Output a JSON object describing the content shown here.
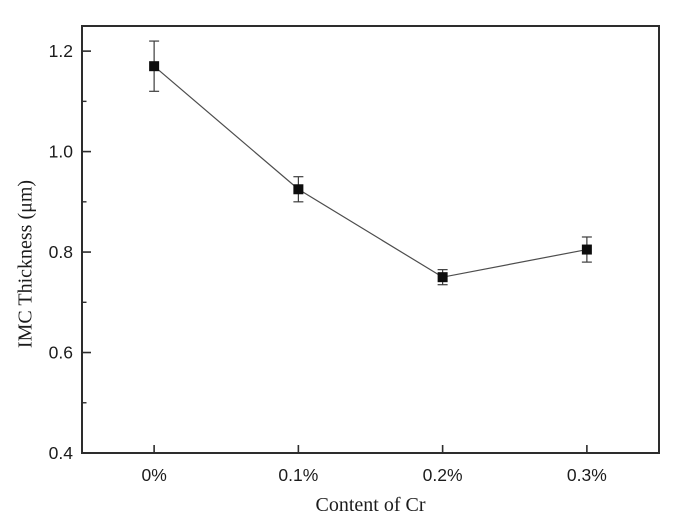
{
  "chart_data": {
    "type": "line",
    "title": "",
    "xlabel": "Content of Cr",
    "ylabel": "IMC Thickness (μm)",
    "categories": [
      "0%",
      "0.1%",
      "0.2%",
      "0.3%"
    ],
    "series": [
      {
        "name": "IMC thickness",
        "values": [
          1.17,
          0.925,
          0.75,
          0.805
        ],
        "errors": [
          0.05,
          0.025,
          0.015,
          0.025
        ],
        "marker": "filled-square"
      }
    ],
    "ylim": [
      0.4,
      1.25
    ],
    "yticks": [
      0.4,
      0.6,
      0.8,
      1.0,
      1.2
    ],
    "ytick_labels": [
      "0.4",
      "0.6",
      "0.8",
      "1.0",
      "1.2"
    ],
    "y_minor_step": 0.1,
    "grid": false,
    "legend": "none",
    "error_bars": true,
    "colors": {
      "background": "#ffffff",
      "frame": "#2d2d2d",
      "line": "#4d4d4d",
      "marker": "#0d0d0d",
      "error_bar": "#3d3d3d",
      "text": "#1c1c1c"
    }
  }
}
